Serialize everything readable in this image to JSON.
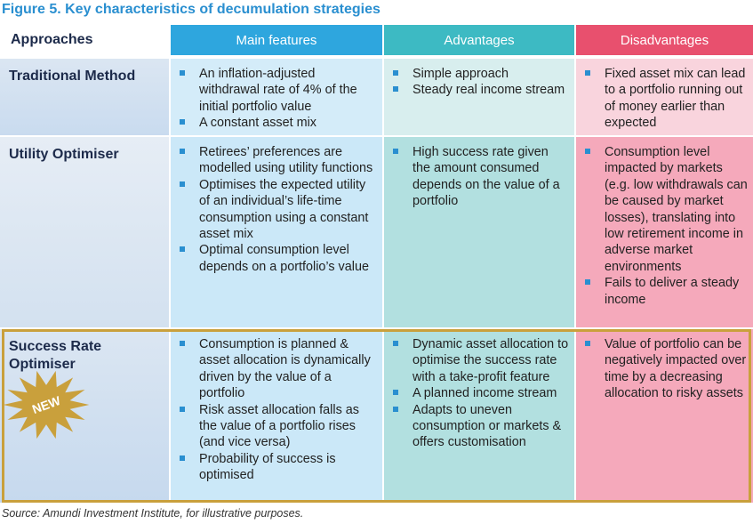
{
  "header": {
    "title": "Figure 5. Key characteristics of decumulation strategies"
  },
  "table": {
    "headers": [
      "Approaches",
      "Main features",
      "Advantages",
      "Disadvantages"
    ],
    "rows": [
      {
        "approach": "Traditional Method",
        "features": [
          "An inflation-adjusted withdrawal rate of 4% of the initial portfolio value",
          "A constant asset mix"
        ],
        "advantages": [
          "Simple approach",
          "Steady real income stream"
        ],
        "disadvantages": [
          "Fixed asset mix can lead to a portfolio running out of money earlier than expected"
        ]
      },
      {
        "approach": "Utility Optimiser",
        "features": [
          "Retirees’ preferences are modelled using utility functions",
          "Optimises the expected utility of an individual’s life-time consumption using a constant asset mix",
          "Optimal consumption level depends on a portfolio’s value"
        ],
        "advantages": [
          "High success rate given the amount consumed depends on the value of a portfolio"
        ],
        "disadvantages": [
          "Consumption level impacted by markets (e.g. low withdrawals can be caused by market losses), translating into low retirement income in adverse market environments",
          "Fails to deliver a steady income"
        ]
      },
      {
        "approach": "Success Rate Optimiser",
        "features": [
          "Consumption is planned & asset allocation is dynamically driven by the value of a portfolio",
          "Risk asset allocation falls as the value of a portfolio rises (and vice versa)",
          "Probability of success is optimised"
        ],
        "advantages": [
          "Dynamic asset allocation to optimise the success rate with a take-profit feature",
          "A planned income stream",
          "Adapts to uneven consumption or markets & offers customisation"
        ],
        "disadvantages": [
          "Value of portfolio can be negatively impacted over time by a decreasing allocation to risky assets"
        ]
      }
    ]
  },
  "badge": "NEW",
  "source": "Source: Amundi Investment Institute, for illustrative purposes."
}
